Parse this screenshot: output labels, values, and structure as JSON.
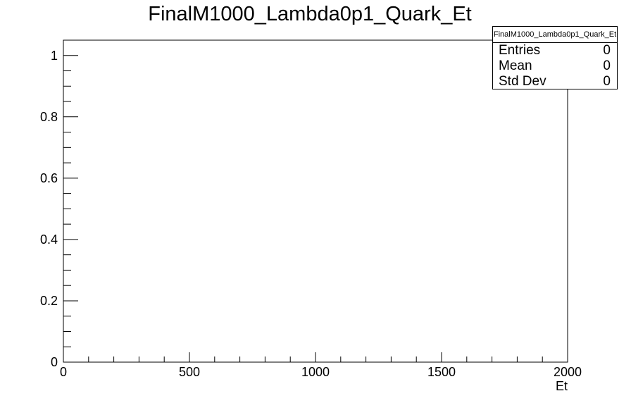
{
  "chart_data": {
    "type": "bar",
    "title": "FinalM1000_Lambda0p1_Quark_Et",
    "xlabel": "Et",
    "ylabel": "",
    "xlim": [
      0,
      2000
    ],
    "ylim": [
      0,
      1.05
    ],
    "x_ticks": [
      "0",
      "500",
      "1000",
      "1500",
      "2000"
    ],
    "y_ticks": [
      "0",
      "0.2",
      "0.4",
      "0.6",
      "0.8",
      "1"
    ],
    "x": [],
    "values": [],
    "grid": false,
    "stats": {
      "name": "FinalM1000_Lambda0p1_Quark_Et",
      "entries_label": "Entries",
      "entries": "0",
      "mean_label": "Mean",
      "mean": "0",
      "stddev_label": "Std Dev",
      "stddev": "0"
    }
  }
}
